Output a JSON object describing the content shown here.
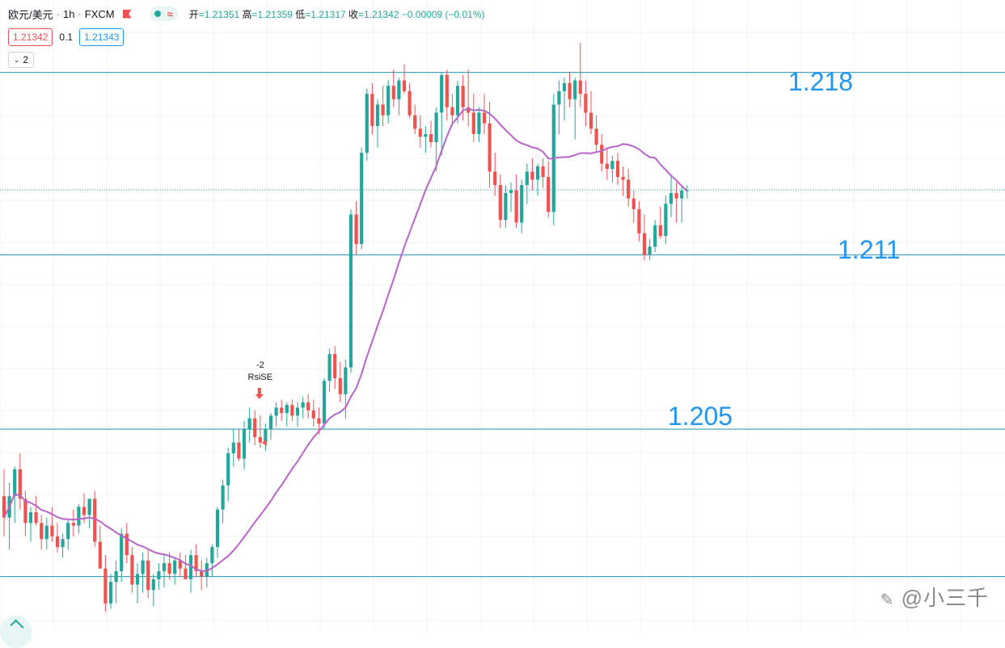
{
  "header": {
    "symbol": "欧元/美元",
    "interval": "1h",
    "exchange": "FXCM",
    "open_label": "开",
    "open": "=1.21351",
    "high_label": "高",
    "high": "=1.21359",
    "low_label": "低",
    "low": "=1.21317",
    "close_label": "收",
    "close": "=1.21342",
    "change": "−0.00009 (−0.01%)"
  },
  "quote": {
    "bid": "1.21342",
    "spread": "0.1",
    "ask": "1.21343"
  },
  "indicator_toggle": {
    "label": "2"
  },
  "annotations": {
    "signal_value": "-2",
    "signal_name": "RsiSE"
  },
  "levels": [
    {
      "label": "1.218",
      "price": 1.2178
    },
    {
      "label": "1.211",
      "price": 1.211
    },
    {
      "label": "1.205",
      "price": 1.2045
    },
    {
      "label": "",
      "price": 1.199
    }
  ],
  "watermark": "@小三千",
  "colors": {
    "up": "#26a69a",
    "down": "#ef5350",
    "ma": "#b865c9",
    "level": "#2196f3",
    "grid": "#f0f3fa"
  },
  "chart_data": {
    "type": "candlestick",
    "title": "欧元/美元 · 1h · FXCM",
    "ylim": [
      1.197,
      1.2205
    ],
    "current_price": 1.21342,
    "candles": [
      [
        1.202,
        1.203,
        1.2005,
        1.2012
      ],
      [
        1.2012,
        1.2025,
        1.2,
        1.202
      ],
      [
        1.202,
        1.2031,
        1.201,
        1.203
      ],
      [
        1.203,
        1.2036,
        1.2015,
        1.2019
      ],
      [
        1.2019,
        1.2022,
        1.2005,
        1.201
      ],
      [
        1.201,
        1.2016,
        1.2003,
        1.2014
      ],
      [
        1.2014,
        1.202,
        1.2009,
        1.201
      ],
      [
        1.201,
        1.2013,
        1.2,
        1.2004
      ],
      [
        1.2004,
        1.2012,
        1.2,
        1.2009
      ],
      [
        1.2009,
        1.2016,
        1.2003,
        1.2005
      ],
      [
        1.2005,
        1.201,
        1.1999,
        1.2001
      ],
      [
        1.2001,
        1.2006,
        1.1997,
        1.2004
      ],
      [
        1.2004,
        1.2011,
        1.2,
        1.201
      ],
      [
        1.201,
        1.2015,
        1.2005,
        1.2009
      ],
      [
        1.2009,
        1.2017,
        1.2006,
        1.2016
      ],
      [
        1.2016,
        1.2021,
        1.201,
        1.2013
      ],
      [
        1.2013,
        1.2019,
        1.2008,
        1.2019
      ],
      [
        1.2019,
        1.2022,
        1.2001,
        1.2003
      ],
      [
        1.2003,
        1.2009,
        1.1993,
        1.1993
      ],
      [
        1.1993,
        1.1998,
        1.1977,
        1.198
      ],
      [
        1.198,
        1.1991,
        1.1978,
        1.1988
      ],
      [
        1.1988,
        1.1996,
        1.198,
        1.1992
      ],
      [
        1.1992,
        1.2008,
        1.1988,
        1.2006
      ],
      [
        1.2006,
        1.201,
        1.1995,
        1.1998
      ],
      [
        1.1998,
        1.2001,
        1.1984,
        1.1987
      ],
      [
        1.1987,
        1.1995,
        1.198,
        1.1991
      ],
      [
        1.1991,
        1.1999,
        1.1984,
        1.1996
      ],
      [
        1.1996,
        1.2,
        1.1982,
        1.1985
      ],
      [
        1.1985,
        1.1991,
        1.1979,
        1.1989
      ],
      [
        1.1989,
        1.1995,
        1.1985,
        1.1992
      ],
      [
        1.1992,
        1.1998,
        1.1986,
        1.1995
      ],
      [
        1.1995,
        1.1999,
        1.1989,
        1.1991
      ],
      [
        1.1991,
        1.1997,
        1.1987,
        1.1996
      ],
      [
        1.1996,
        1.1999,
        1.199,
        1.1993
      ],
      [
        1.1993,
        1.1998,
        1.1989,
        1.1989
      ],
      [
        1.1989,
        1.2,
        1.1984,
        1.1998
      ],
      [
        1.1998,
        1.2002,
        1.199,
        1.1992
      ],
      [
        1.1992,
        1.1996,
        1.1985,
        1.199
      ],
      [
        1.199,
        1.1997,
        1.1986,
        1.1995
      ],
      [
        1.1995,
        1.2002,
        1.199,
        1.2001
      ],
      [
        1.2001,
        1.2016,
        1.1997,
        1.2015
      ],
      [
        1.2015,
        1.2026,
        1.201,
        1.2024
      ],
      [
        1.2024,
        1.2038,
        1.2018,
        1.2036
      ],
      [
        1.2036,
        1.2045,
        1.2031,
        1.204
      ],
      [
        1.204,
        1.2045,
        1.2033,
        1.2034
      ],
      [
        1.2034,
        1.2048,
        1.203,
        1.2045
      ],
      [
        1.2045,
        1.2053,
        1.204,
        1.2049
      ],
      [
        1.2049,
        1.2052,
        1.2039,
        1.2042
      ],
      [
        1.2042,
        1.205,
        1.2038,
        1.204
      ],
      [
        1.204,
        1.2047,
        1.2037,
        1.2045
      ],
      [
        1.2045,
        1.2051,
        1.2041,
        1.205
      ],
      [
        1.205,
        1.2055,
        1.2046,
        1.2053
      ],
      [
        1.2053,
        1.2056,
        1.2048,
        1.2051
      ],
      [
        1.2051,
        1.2055,
        1.2046,
        1.2054
      ],
      [
        1.2054,
        1.2056,
        1.2048,
        1.205
      ],
      [
        1.205,
        1.2055,
        1.2046,
        1.2053
      ],
      [
        1.2053,
        1.2057,
        1.2049,
        1.2055
      ],
      [
        1.2055,
        1.2058,
        1.2049,
        1.2052
      ],
      [
        1.2052,
        1.2056,
        1.2046,
        1.2049
      ],
      [
        1.2049,
        1.2053,
        1.2043,
        1.2047
      ],
      [
        1.2047,
        1.2064,
        1.2045,
        1.2063
      ],
      [
        1.2063,
        1.2075,
        1.2059,
        1.2073
      ],
      [
        1.2073,
        1.2076,
        1.206,
        1.2064
      ],
      [
        1.2064,
        1.207,
        1.2055,
        1.2058
      ],
      [
        1.2058,
        1.2071,
        1.2049,
        1.2068
      ],
      [
        1.2068,
        1.2127,
        1.2066,
        1.2125
      ],
      [
        1.2125,
        1.213,
        1.211,
        1.2114
      ],
      [
        1.2114,
        1.215,
        1.2112,
        1.2148
      ],
      [
        1.2148,
        1.2172,
        1.2145,
        1.217
      ],
      [
        1.217,
        1.2174,
        1.2155,
        1.2158
      ],
      [
        1.2158,
        1.2168,
        1.215,
        1.2166
      ],
      [
        1.2166,
        1.2173,
        1.2158,
        1.2162
      ],
      [
        1.2162,
        1.2175,
        1.2159,
        1.2173
      ],
      [
        1.2173,
        1.2179,
        1.2165,
        1.2168
      ],
      [
        1.2168,
        1.2176,
        1.2162,
        1.2175
      ],
      [
        1.2175,
        1.2181,
        1.217,
        1.2171
      ],
      [
        1.2171,
        1.2174,
        1.2161,
        1.2162
      ],
      [
        1.2162,
        1.2166,
        1.2155,
        1.2157
      ],
      [
        1.2157,
        1.2162,
        1.215,
        1.2154
      ],
      [
        1.2154,
        1.2158,
        1.2148,
        1.2155
      ],
      [
        1.2155,
        1.216,
        1.215,
        1.2152
      ],
      [
        1.2152,
        1.2165,
        1.2141,
        1.2163
      ],
      [
        1.2163,
        1.2178,
        1.2147,
        1.2177
      ],
      [
        1.2177,
        1.2179,
        1.216,
        1.2165
      ],
      [
        1.2165,
        1.217,
        1.2158,
        1.2162
      ],
      [
        1.2162,
        1.2175,
        1.2159,
        1.2173
      ],
      [
        1.2173,
        1.2177,
        1.216,
        1.2165
      ],
      [
        1.2165,
        1.2179,
        1.2158,
        1.2163
      ],
      [
        1.2163,
        1.217,
        1.2152,
        1.2155
      ],
      [
        1.2155,
        1.2165,
        1.2152,
        1.2163
      ],
      [
        1.2163,
        1.217,
        1.2155,
        1.2159
      ],
      [
        1.2159,
        1.2167,
        1.2135,
        1.2141
      ],
      [
        1.2141,
        1.2148,
        1.2132,
        1.2136
      ],
      [
        1.2136,
        1.214,
        1.212,
        1.2123
      ],
      [
        1.2123,
        1.2136,
        1.212,
        1.2133
      ],
      [
        1.2133,
        1.2137,
        1.2126,
        1.2134
      ],
      [
        1.2134,
        1.214,
        1.212,
        1.2122
      ],
      [
        1.2122,
        1.2138,
        1.2118,
        1.2136
      ],
      [
        1.2136,
        1.2144,
        1.2129,
        1.2141
      ],
      [
        1.2141,
        1.2146,
        1.2134,
        1.2138
      ],
      [
        1.2138,
        1.2144,
        1.2132,
        1.2143
      ],
      [
        1.2143,
        1.2146,
        1.2135,
        1.2139
      ],
      [
        1.2139,
        1.2145,
        1.2124,
        1.2126
      ],
      [
        1.2126,
        1.217,
        1.2121,
        1.2166
      ],
      [
        1.2166,
        1.2175,
        1.2155,
        1.2171
      ],
      [
        1.2171,
        1.2176,
        1.216,
        1.2174
      ],
      [
        1.2174,
        1.2178,
        1.2165,
        1.2168
      ],
      [
        1.2168,
        1.2176,
        1.2153,
        1.2175
      ],
      [
        1.2175,
        1.2189,
        1.2165,
        1.217
      ],
      [
        1.217,
        1.2175,
        1.2158,
        1.2163
      ],
      [
        1.2163,
        1.2171,
        1.2155,
        1.2157
      ],
      [
        1.2157,
        1.2162,
        1.2148,
        1.2151
      ],
      [
        1.2151,
        1.2155,
        1.2141,
        1.2144
      ],
      [
        1.2144,
        1.215,
        1.2138,
        1.2142
      ],
      [
        1.2142,
        1.2147,
        1.2137,
        1.2145
      ],
      [
        1.2145,
        1.2148,
        1.2136,
        1.2139
      ],
      [
        1.2139,
        1.2143,
        1.2132,
        1.2138
      ],
      [
        1.2138,
        1.2142,
        1.2128,
        1.2131
      ],
      [
        1.2131,
        1.2134,
        1.2122,
        1.2127
      ],
      [
        1.2127,
        1.213,
        1.2115,
        1.2118
      ],
      [
        1.2118,
        1.2125,
        1.2108,
        1.211
      ],
      [
        1.211,
        1.2116,
        1.2108,
        1.2113
      ],
      [
        1.2113,
        1.2123,
        1.2111,
        1.2121
      ],
      [
        1.2121,
        1.2128,
        1.2116,
        1.2117
      ],
      [
        1.2117,
        1.2132,
        1.2114,
        1.2129
      ],
      [
        1.2129,
        1.214,
        1.2124,
        1.2133
      ],
      [
        1.2133,
        1.2137,
        1.2122,
        1.2131
      ],
      [
        1.2131,
        1.2136,
        1.2122,
        1.2134
      ],
      [
        1.2134,
        1.2136,
        1.2131,
        1.2134
      ]
    ]
  }
}
